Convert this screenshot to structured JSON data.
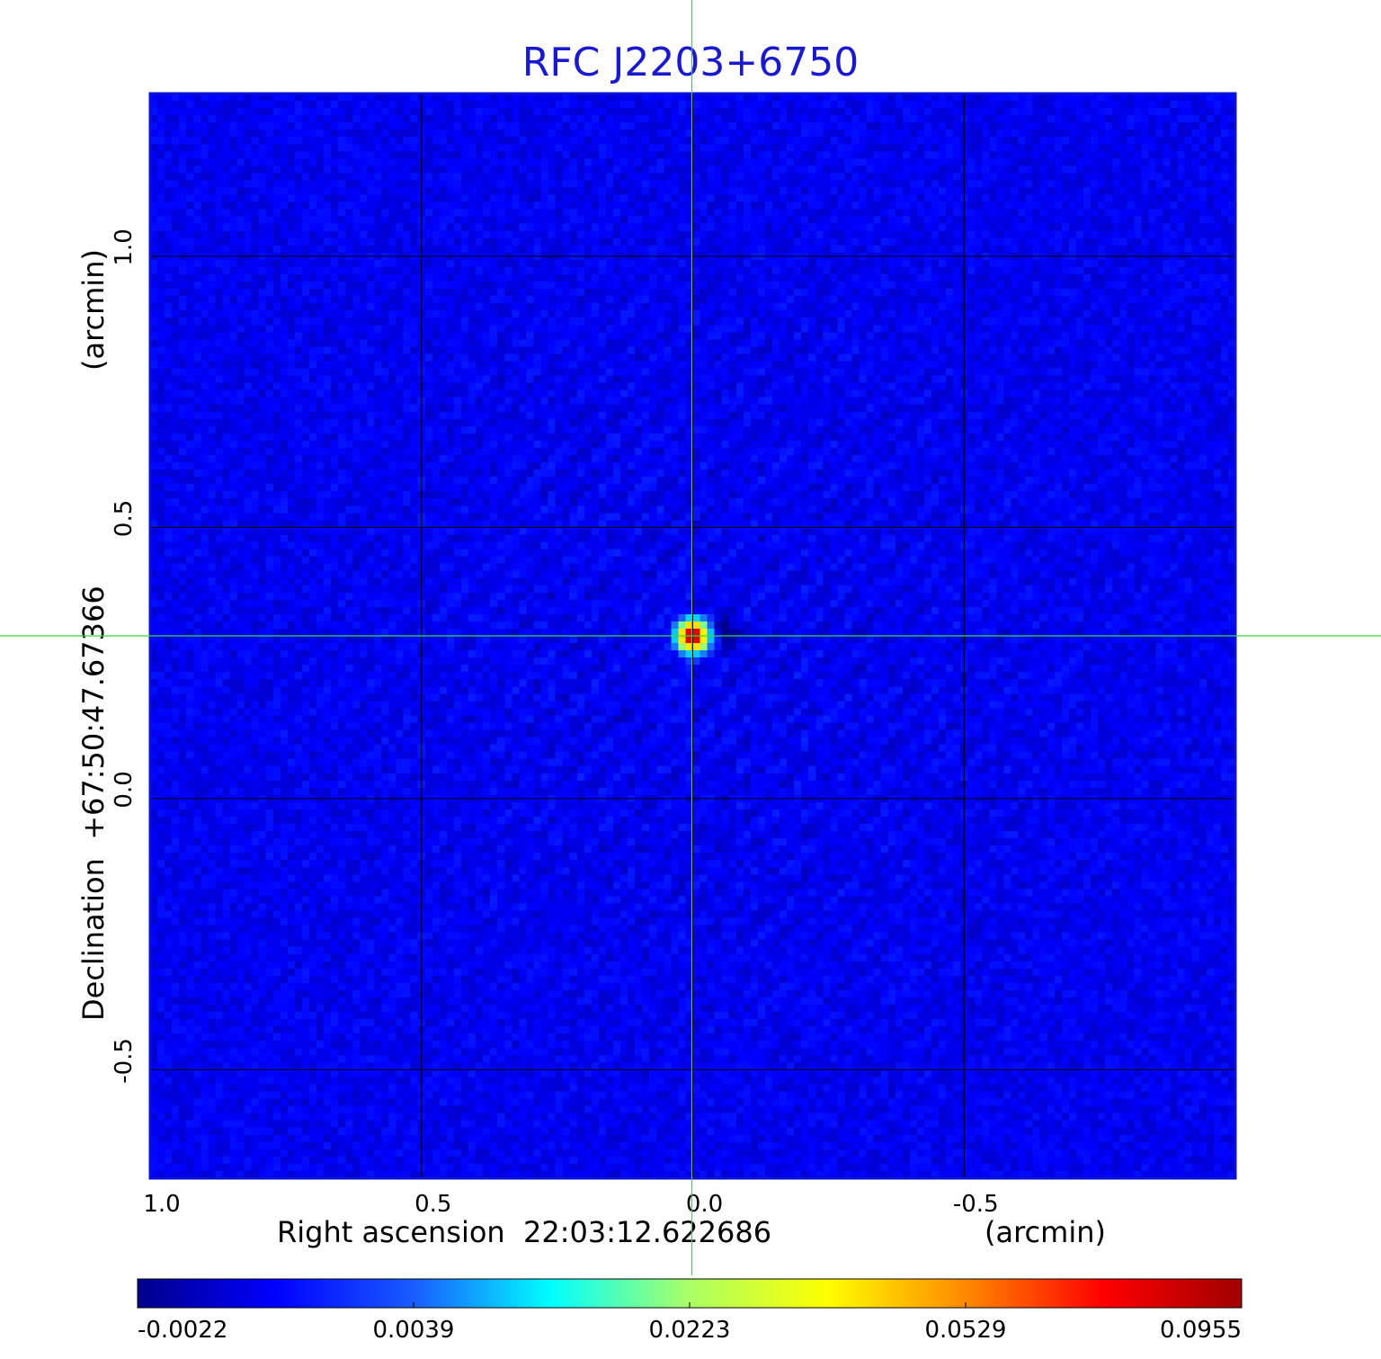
{
  "chart_data": {
    "type": "heatmap",
    "title": "RFC J2203+6750",
    "xlabel": "Right ascension  22:03:12.622686",
    "xunit": "(arcmin)",
    "ylabel": "Declination  +67:50:47.67366",
    "yunit": "(arcmin)",
    "xlim": [
      1.0,
      -1.0
    ],
    "ylim": [
      -0.7,
      1.3
    ],
    "x_ticks": [
      {
        "value": 1.0,
        "label": "1.0"
      },
      {
        "value": 0.5,
        "label": "0.5"
      },
      {
        "value": 0.0,
        "label": "0.0"
      },
      {
        "value": -0.5,
        "label": "-0.5"
      }
    ],
    "y_ticks": [
      {
        "value": 1.0,
        "label": "1.0"
      },
      {
        "value": 0.5,
        "label": "0.5"
      },
      {
        "value": 0.0,
        "label": "0.0"
      },
      {
        "value": -0.5,
        "label": "-0.5"
      }
    ],
    "grid": true,
    "crosshair": {
      "x": 0.0,
      "y": 0.3,
      "color": "#33dd33"
    },
    "source": {
      "x": 0.0,
      "y": 0.3,
      "peak": 0.0955
    },
    "background_level": 0.0005,
    "colorbar": {
      "position": "bottom",
      "min": -0.0022,
      "max": 0.0955,
      "ticks": [
        {
          "value": -0.0022,
          "label": "-0.0022"
        },
        {
          "value": 0.0039,
          "label": "0.0039"
        },
        {
          "value": 0.0223,
          "label": "0.0223"
        },
        {
          "value": 0.0529,
          "label": "0.0529"
        },
        {
          "value": 0.0955,
          "label": "0.0955"
        }
      ],
      "colormap": [
        "#00008b",
        "#0000ff",
        "#1a5cff",
        "#00ffff",
        "#aaff66",
        "#ffff00",
        "#ff8800",
        "#ff0000",
        "#a00000"
      ]
    },
    "colors": {
      "title": "#1a1acc",
      "frame": "#0a12d4",
      "grid": "#000000",
      "crosshair": "#33dd33"
    }
  }
}
